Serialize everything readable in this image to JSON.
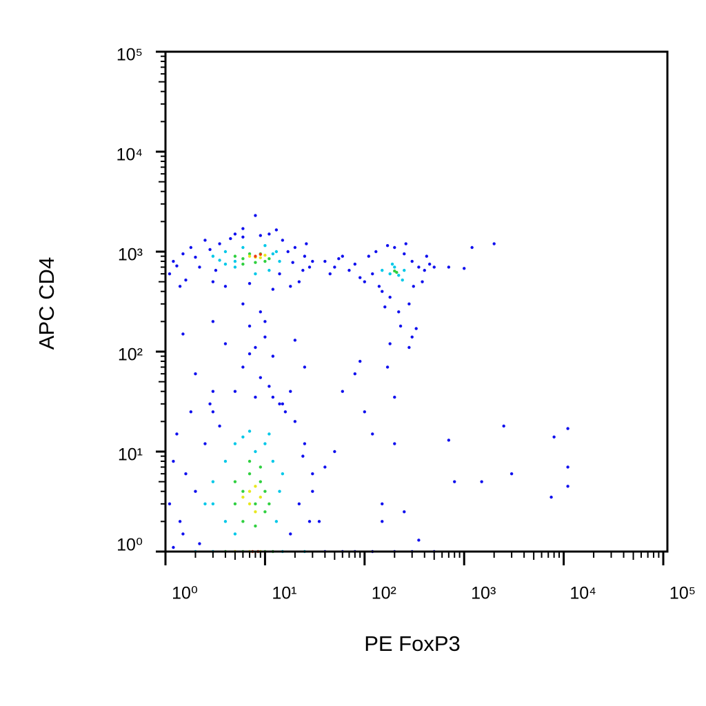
{
  "chart_data": {
    "type": "scatter",
    "x_label": "PE FoxP3",
    "y_label": "APC CD4",
    "log_x": true,
    "log_y": true,
    "xlim": [
      1,
      110000
    ],
    "ylim": [
      1,
      100000
    ],
    "xticks": [
      {
        "value": 1,
        "label": "10⁰"
      },
      {
        "value": 10,
        "label": "10¹"
      },
      {
        "value": 100,
        "label": "10²"
      },
      {
        "value": 1000,
        "label": "10³"
      },
      {
        "value": 10000,
        "label": "10⁴"
      },
      {
        "value": 100000,
        "label": "10⁵"
      }
    ],
    "yticks": [
      {
        "value": 1,
        "label": "10⁰"
      },
      {
        "value": 10,
        "label": "10¹"
      },
      {
        "value": 100,
        "label": "10²"
      },
      {
        "value": 1000,
        "label": "10³"
      },
      {
        "value": 10000,
        "label": "10⁴"
      },
      {
        "value": 100000,
        "label": "10⁵"
      }
    ],
    "series": [
      {
        "color": "#1010ee",
        "x": [
          1.2,
          1.5,
          1.1,
          1.8,
          2.2,
          2.5,
          3,
          3.5,
          1.3,
          2,
          4,
          5,
          6,
          15,
          20,
          25,
          28,
          22,
          18,
          12,
          30,
          26,
          1.6,
          2.8,
          3.2,
          14,
          17,
          24,
          9,
          7,
          11,
          19,
          4.5,
          1.4,
          8,
          6,
          13,
          6,
          9,
          7,
          10,
          8,
          12,
          6,
          9,
          11,
          5,
          8,
          14,
          3,
          4,
          2,
          1.5,
          20,
          25,
          3,
          18,
          10,
          7,
          40,
          50,
          60,
          70,
          80,
          45,
          55,
          90,
          100,
          110,
          130,
          150,
          180,
          200,
          250,
          300,
          350,
          400,
          450,
          500,
          280,
          220,
          160,
          120,
          380,
          420,
          260,
          170,
          140,
          310,
          230,
          300,
          180,
          280,
          330,
          1200,
          2000,
          700,
          1000,
          2500,
          8000,
          11000,
          800,
          1500,
          3000,
          7500,
          11000,
          11000,
          700,
          200,
          250,
          150,
          350,
          150,
          120,
          100,
          60,
          80,
          90,
          170,
          200,
          50,
          40,
          30,
          35,
          1.1,
          1.2,
          1.3,
          1.5,
          1.8,
          2,
          2.5,
          2.2,
          3,
          3.5,
          1.4,
          1.6,
          20,
          25,
          30,
          22,
          18,
          28,
          15,
          12,
          16,
          24,
          2.8,
          1.2,
          40,
          60,
          80,
          120,
          200,
          300,
          500
        ],
        "values": [
          800,
          950,
          600,
          1100,
          700,
          1300,
          500,
          1200,
          720,
          880,
          450,
          1500,
          1400,
          1300,
          1100,
          900,
          700,
          500,
          450,
          420,
          800,
          1200,
          520,
          1050,
          650,
          600,
          1000,
          650,
          1450,
          480,
          1500,
          780,
          1350,
          450,
          2300,
          1700,
          1650,
          300,
          250,
          180,
          140,
          110,
          90,
          70,
          55,
          45,
          40,
          35,
          30,
          200,
          120,
          60,
          150,
          130,
          70,
          25,
          40,
          200,
          95,
          800,
          700,
          900,
          650,
          750,
          600,
          850,
          550,
          500,
          900,
          1000,
          400,
          350,
          1100,
          950,
          800,
          700,
          650,
          750,
          700,
          300,
          250,
          280,
          600,
          500,
          900,
          1200,
          1150,
          450,
          450,
          180,
          140,
          120,
          110,
          170,
          1100,
          1200,
          700,
          680,
          18,
          14,
          17,
          5,
          5,
          6,
          3.5,
          4.5,
          7,
          13,
          12,
          2.5,
          2,
          1.3,
          3,
          15,
          25,
          40,
          60,
          80,
          70,
          35,
          10,
          7,
          4,
          2,
          3,
          8,
          15,
          1.5,
          25,
          4,
          12,
          1.2,
          40,
          18,
          2,
          6,
          20,
          12,
          6,
          3,
          1.5,
          2,
          30,
          35,
          25,
          9,
          30,
          1.1,
          1,
          1,
          1,
          1,
          1,
          1,
          1
        ]
      },
      {
        "color": "#00c8e8",
        "x": [
          3,
          4,
          5,
          6,
          10,
          12,
          14,
          11,
          8,
          5,
          4,
          13,
          3.5,
          150,
          180,
          200,
          220,
          250,
          190,
          240,
          3,
          4,
          5,
          6,
          10,
          12,
          14,
          13,
          4,
          3,
          5,
          11,
          7,
          15,
          8,
          2.5,
          2,
          3,
          15,
          25
        ],
        "values": [
          900,
          1000,
          800,
          1100,
          1150,
          950,
          800,
          650,
          600,
          700,
          750,
          1000,
          820,
          650,
          600,
          700,
          580,
          650,
          750,
          520,
          5,
          8,
          12,
          14,
          12,
          8,
          4,
          2,
          2,
          3,
          1.5,
          15,
          16,
          6,
          10,
          3,
          1,
          1,
          1,
          1
        ]
      },
      {
        "color": "#30d040",
        "x": [
          5,
          6,
          7,
          9,
          10,
          8,
          6,
          11,
          200,
          210,
          5,
          6,
          7,
          8,
          9,
          10,
          6,
          8,
          7,
          9,
          5,
          10,
          11,
          4,
          6,
          10,
          12
        ],
        "values": [
          900,
          850,
          950,
          950,
          800,
          780,
          750,
          850,
          640,
          620,
          5,
          4,
          6,
          3,
          5,
          4,
          2,
          1.8,
          8,
          7,
          3,
          2.5,
          3,
          1,
          1,
          1,
          1
        ]
      },
      {
        "color": "#e8e820",
        "x": [
          8,
          9,
          7,
          10,
          7,
          8,
          7,
          8,
          9,
          6,
          5,
          7,
          9
        ],
        "values": [
          880,
          870,
          900,
          920,
          4,
          4.5,
          3,
          2.5,
          3.5,
          3.5,
          1,
          1,
          1
        ]
      },
      {
        "color": "#f04010",
        "x": [
          8,
          9,
          7.5,
          8.5
        ],
        "values": [
          900,
          940,
          1,
          1
        ]
      }
    ]
  }
}
